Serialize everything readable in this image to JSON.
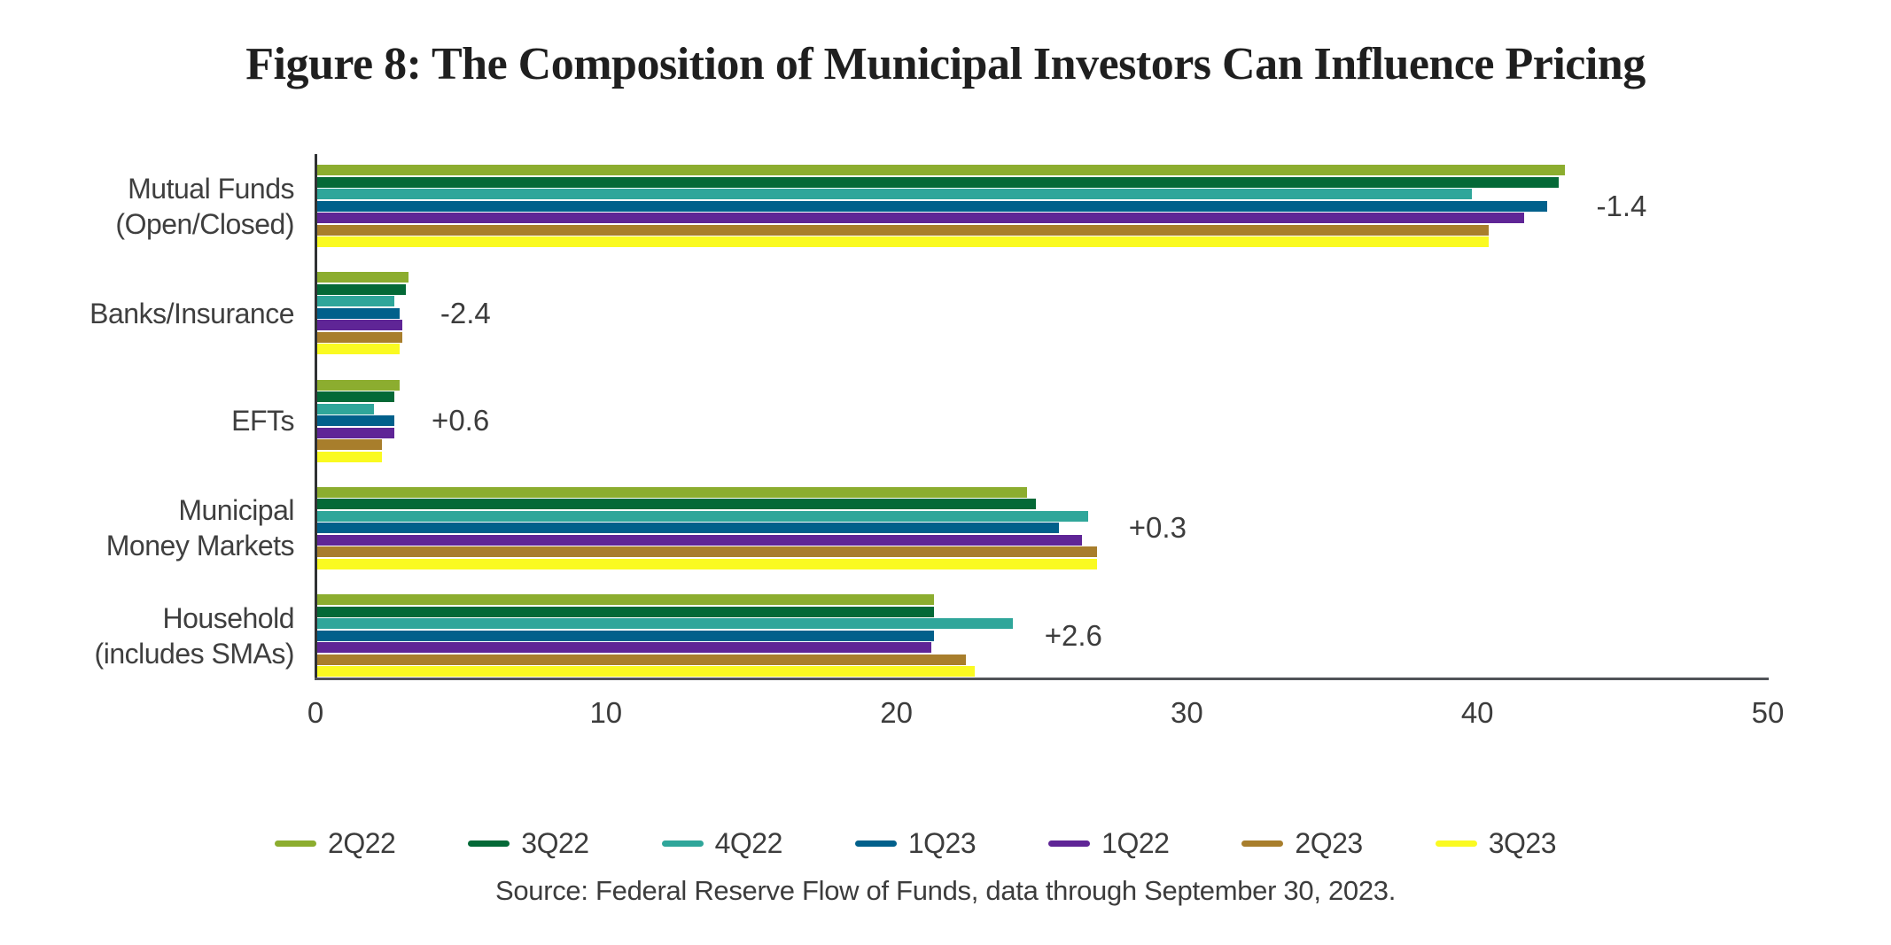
{
  "title": "Figure 8: The Composition of Municipal Investors Can Influence Pricing",
  "source": "Source: Federal Reserve Flow of Funds, data through September 30, 2023.",
  "chart_data": {
    "type": "bar",
    "orientation": "horizontal",
    "title": "Figure 8: The Composition of Municipal Investors Can Influence Pricing",
    "xlabel": "",
    "ylabel": "",
    "xlim": [
      0,
      50
    ],
    "xticks": [
      0,
      10,
      20,
      30,
      40,
      50
    ],
    "grid": false,
    "legend_position": "bottom",
    "categories": [
      {
        "label_lines": [
          "Mutual Funds",
          "(Open/Closed)"
        ],
        "annotation": "-1.4"
      },
      {
        "label_lines": [
          "Banks/Insurance"
        ],
        "annotation": "-2.4"
      },
      {
        "label_lines": [
          "EFTs"
        ],
        "annotation": "+0.6"
      },
      {
        "label_lines": [
          "Municipal",
          "Money Markets"
        ],
        "annotation": "+0.3"
      },
      {
        "label_lines": [
          "Household",
          "(includes SMAs)"
        ],
        "annotation": "+2.6"
      }
    ],
    "series": [
      {
        "name": "2Q22",
        "color": "#8CAD2F",
        "values": [
          43.0,
          3.2,
          2.9,
          24.5,
          21.3
        ]
      },
      {
        "name": "3Q22",
        "color": "#046937",
        "values": [
          42.8,
          3.1,
          2.7,
          24.8,
          21.3
        ]
      },
      {
        "name": "4Q22",
        "color": "#2FA69A",
        "values": [
          39.8,
          2.7,
          2.0,
          26.6,
          24.0
        ]
      },
      {
        "name": "1Q23",
        "color": "#01608B",
        "values": [
          42.4,
          2.9,
          2.7,
          25.6,
          21.3
        ]
      },
      {
        "name": "1Q22",
        "color": "#5F2596",
        "values": [
          41.6,
          3.0,
          2.7,
          26.4,
          21.2
        ]
      },
      {
        "name": "2Q23",
        "color": "#A87E2C",
        "values": [
          40.4,
          3.0,
          2.3,
          26.9,
          22.4
        ]
      },
      {
        "name": "3Q23",
        "color": "#FAFA21",
        "values": [
          40.4,
          2.9,
          2.3,
          26.9,
          22.7
        ]
      }
    ]
  }
}
